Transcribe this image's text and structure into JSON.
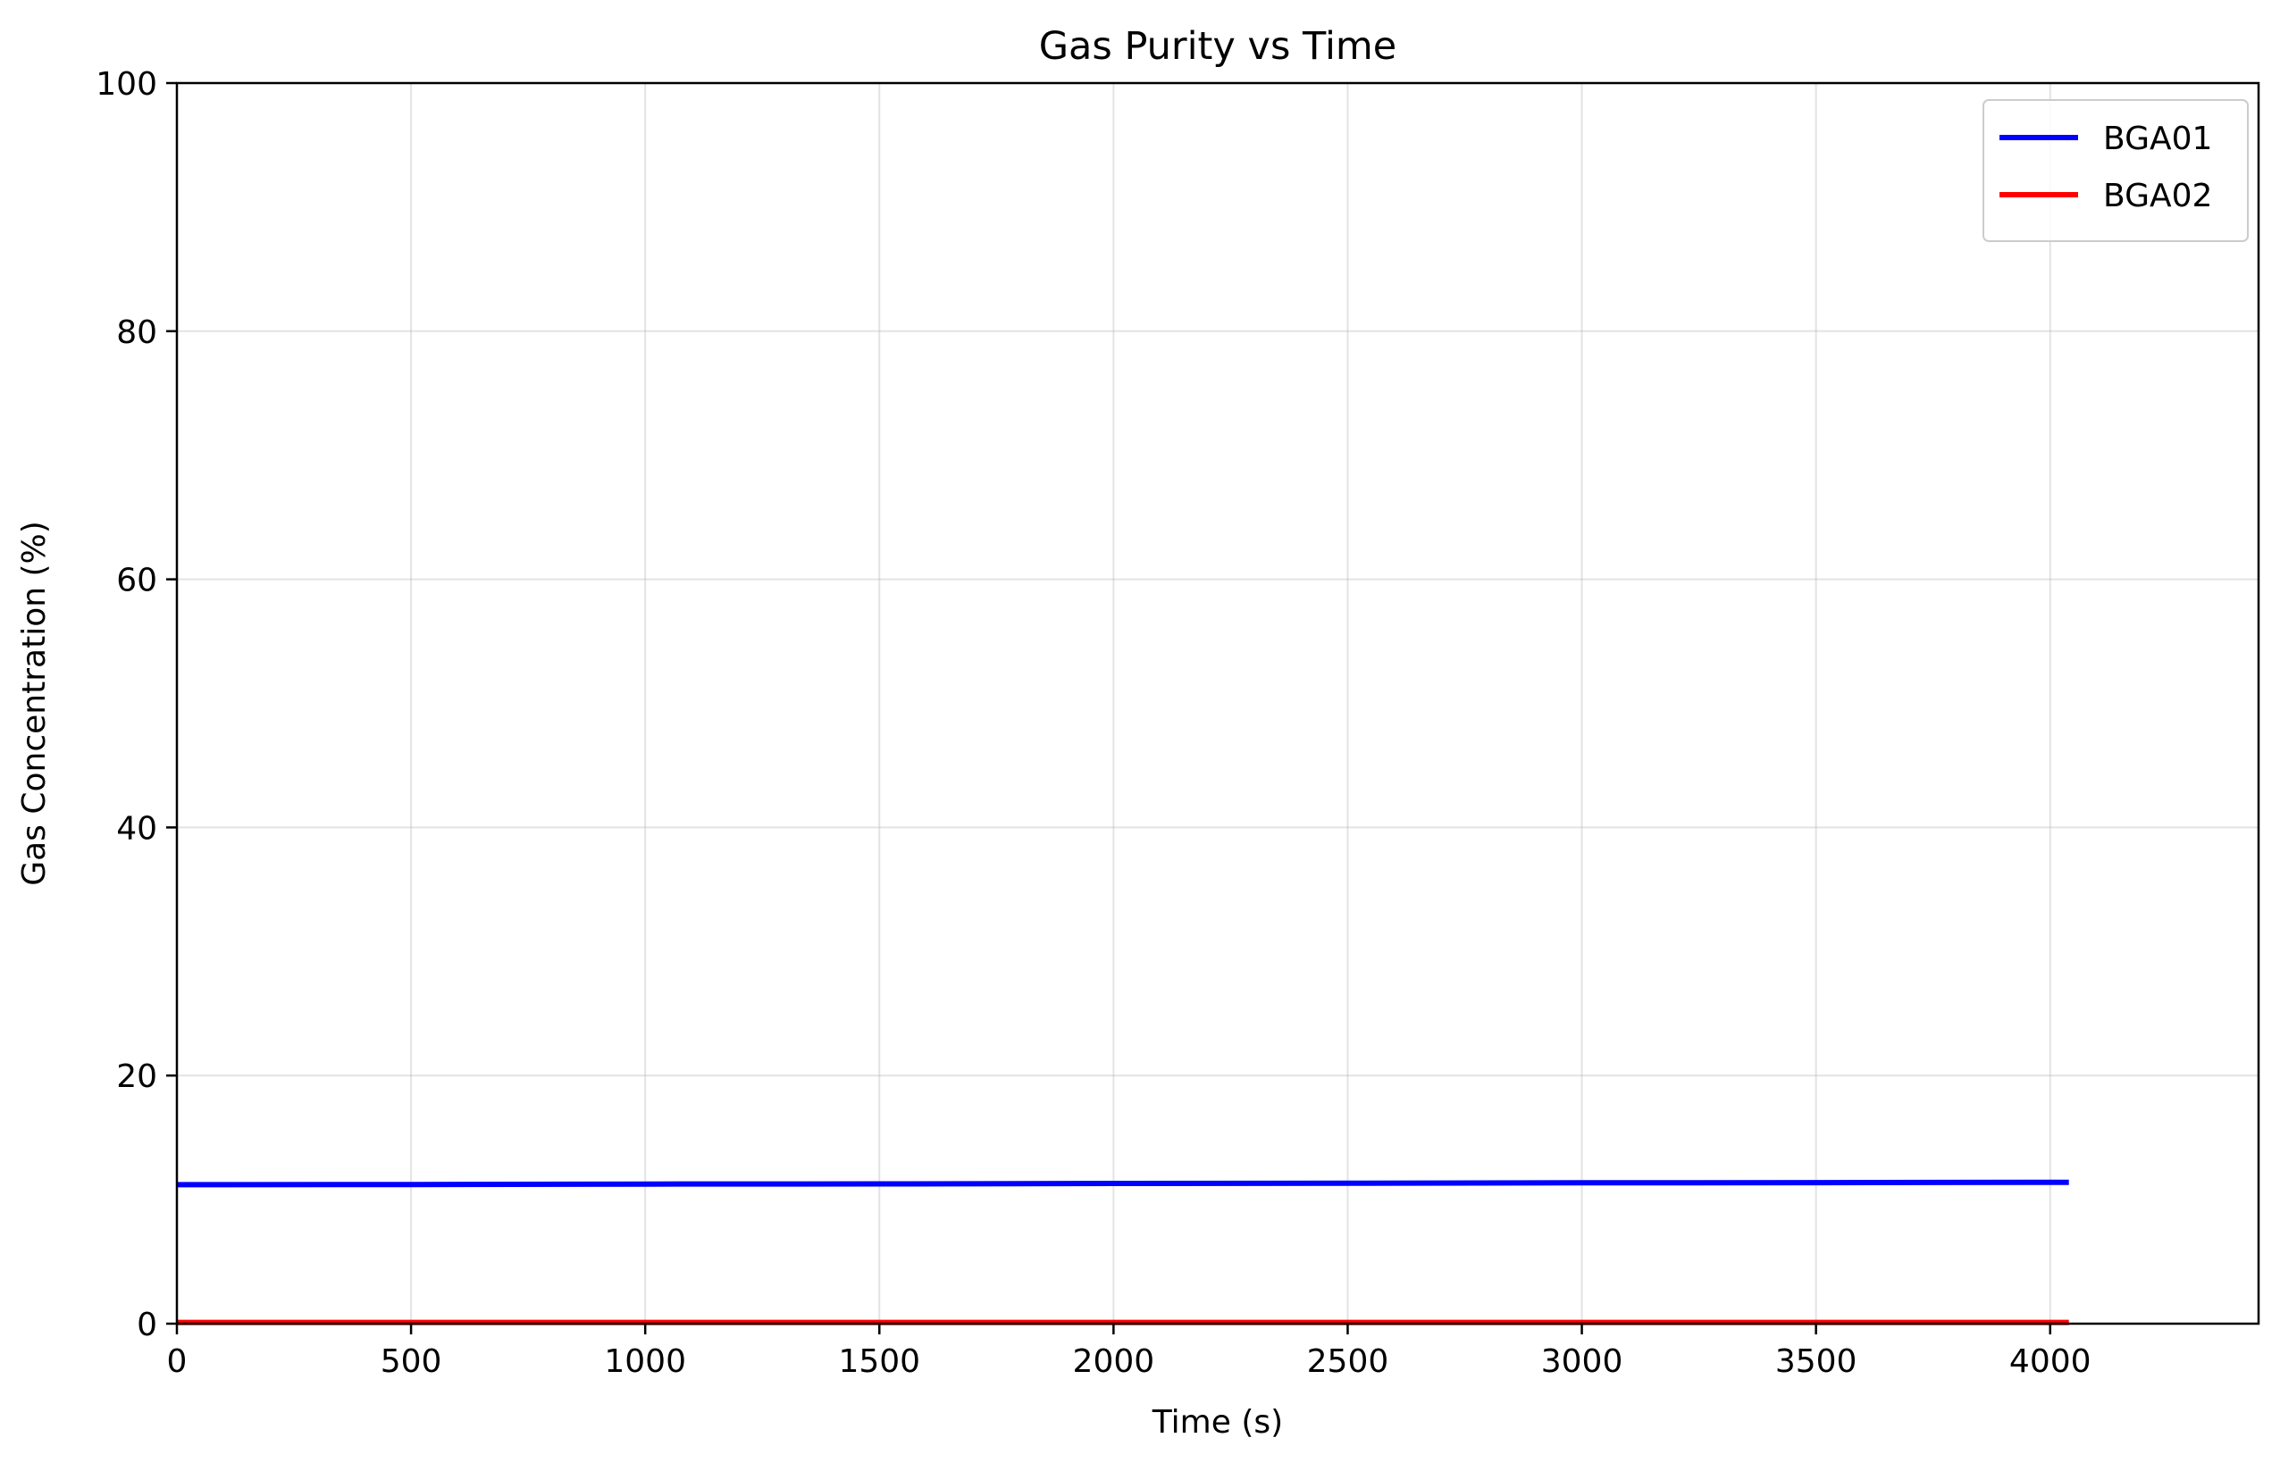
{
  "chart_data": {
    "type": "line",
    "title": "Gas Purity vs Time",
    "xlabel": "Time (s)",
    "ylabel": "Gas Concentration (%)",
    "xlim": [
      0,
      4445
    ],
    "ylim": [
      0,
      100
    ],
    "xticks": [
      0,
      500,
      1000,
      1500,
      2000,
      2500,
      3000,
      3500,
      4000
    ],
    "yticks": [
      0,
      20,
      40,
      60,
      80,
      100
    ],
    "grid": true,
    "legend_position": "top-right",
    "series": [
      {
        "name": "BGA01",
        "color": "#0000ff",
        "x": [
          0,
          500,
          1000,
          1500,
          2000,
          2500,
          3000,
          3500,
          4040
        ],
        "y": [
          11.2,
          11.22,
          11.25,
          11.27,
          11.3,
          11.32,
          11.35,
          11.37,
          11.4
        ]
      },
      {
        "name": "BGA02",
        "color": "#ff0000",
        "x": [
          0,
          500,
          1000,
          1500,
          2000,
          2500,
          3000,
          3500,
          4040
        ],
        "y": [
          0.1,
          0.1,
          0.1,
          0.1,
          0.1,
          0.1,
          0.1,
          0.1,
          0.1
        ]
      }
    ]
  }
}
